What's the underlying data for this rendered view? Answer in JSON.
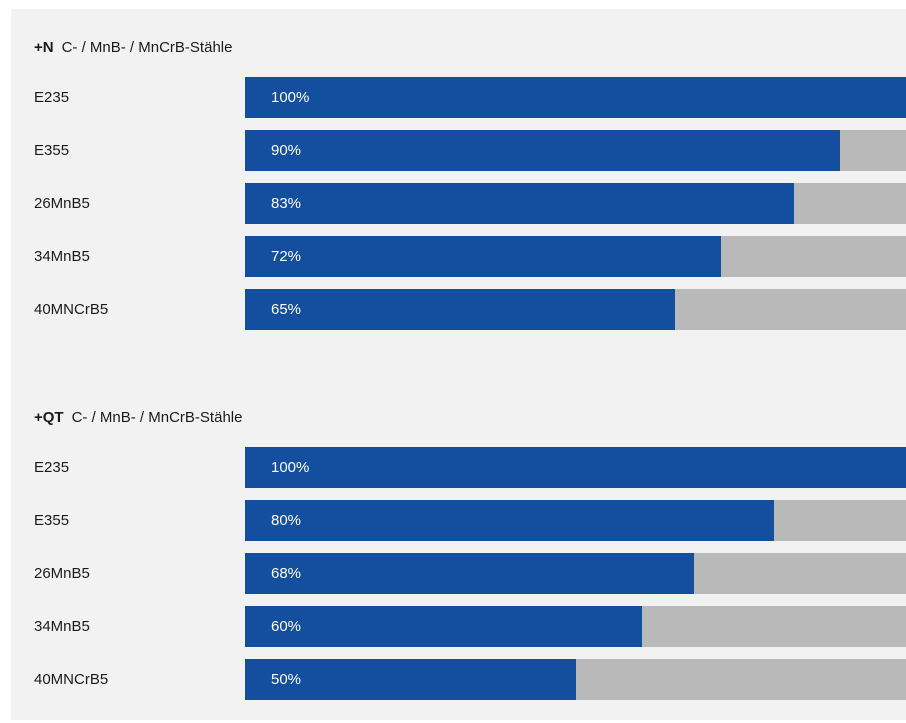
{
  "colors": {
    "panel_background": "#f2f2f2",
    "bar_fill": "#134f9e",
    "bar_track": "#b9b9b9",
    "text": "#1a1a1a",
    "value_text": "#ffffff"
  },
  "chart_data": [
    {
      "type": "bar",
      "orientation": "horizontal",
      "title_prefix": "+N",
      "title": "C- / MnB- / MnCrB-Stähle",
      "categories": [
        "E235",
        "E355",
        "26MnB5",
        "34MnB5",
        "40MNCrB5"
      ],
      "values": [
        100,
        90,
        83,
        72,
        65
      ],
      "value_labels": [
        "100%",
        "90%",
        "83%",
        "72%",
        "65%"
      ],
      "xlim": [
        0,
        100
      ]
    },
    {
      "type": "bar",
      "orientation": "horizontal",
      "title_prefix": "+QT",
      "title": "C- / MnB- / MnCrB-Stähle",
      "categories": [
        "E235",
        "E355",
        "26MnB5",
        "34MnB5",
        "40MNCrB5"
      ],
      "values": [
        100,
        80,
        68,
        60,
        50
      ],
      "value_labels": [
        "100%",
        "80%",
        "68%",
        "60%",
        "50%"
      ],
      "xlim": [
        0,
        100
      ]
    }
  ]
}
